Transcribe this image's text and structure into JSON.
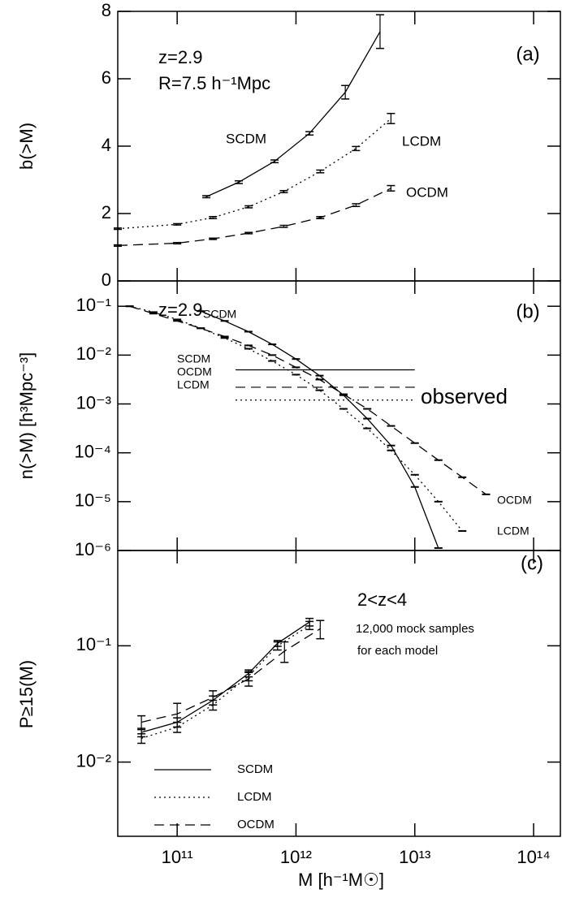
{
  "chart_data": [
    {
      "type": "line",
      "panel_label": "(a)",
      "y_label": "b(>M)",
      "annotations": [
        "z=2.9",
        "R=7.5 h⁻¹Mpc"
      ],
      "log_x": true,
      "log_y": false,
      "xlim": [
        31620000000,
        168000000000000
      ],
      "xticks": [
        {
          "value": 100000000000,
          "label": "10¹¹"
        },
        {
          "value": 1000000000000,
          "label": "10¹²"
        },
        {
          "value": 10000000000000,
          "label": "10¹³"
        },
        {
          "value": 100000000000000,
          "label": "10¹⁴"
        }
      ],
      "ylim": [
        0,
        8
      ],
      "yticks": [
        0,
        2,
        4,
        6,
        8
      ],
      "series": [
        {
          "name": "SCDM",
          "color": "#000000",
          "dash": "solid",
          "x": [
            176000000000,
            330000000000,
            660000000000,
            1300000000000,
            2600000000000,
            5100000000000
          ],
          "values": [
            2.5,
            2.93,
            3.55,
            4.38,
            5.6,
            7.4
          ],
          "errors": [
            0.03,
            0.04,
            0.04,
            0.05,
            0.2,
            0.5
          ]
        },
        {
          "name": "LCDM",
          "color": "#000000",
          "dash": "dotted",
          "x": [
            31620000000,
            100000000000,
            200000000000,
            400000000000,
            790000000000,
            1600000000000,
            3200000000000,
            6300000000000
          ],
          "values": [
            1.55,
            1.68,
            1.88,
            2.2,
            2.65,
            3.25,
            3.93,
            4.82
          ],
          "errors": [
            0.02,
            0.02,
            0.03,
            0.03,
            0.03,
            0.04,
            0.06,
            0.15
          ]
        },
        {
          "name": "OCDM",
          "color": "#000000",
          "dash": "dashed",
          "x": [
            31620000000,
            100000000000,
            200000000000,
            400000000000,
            790000000000,
            1600000000000,
            3200000000000,
            6300000000000
          ],
          "values": [
            1.05,
            1.12,
            1.25,
            1.42,
            1.62,
            1.88,
            2.25,
            2.75
          ],
          "errors": [
            0.02,
            0.02,
            0.02,
            0.02,
            0.03,
            0.03,
            0.04,
            0.08
          ]
        }
      ]
    },
    {
      "type": "line",
      "panel_label": "(b)",
      "y_label": "n(>M)  [h³Mpc⁻³]",
      "annotations": [
        "z=2.9"
      ],
      "log_x": true,
      "log_y": true,
      "xlim": [
        31620000000,
        168000000000000
      ],
      "xticks": [
        {
          "value": 100000000000,
          "label": "10¹¹"
        },
        {
          "value": 1000000000000,
          "label": "10¹²"
        },
        {
          "value": 10000000000000,
          "label": "10¹³"
        },
        {
          "value": 100000000000000,
          "label": "10¹⁴"
        }
      ],
      "ylim": [
        1e-06,
        0.33
      ],
      "yticks": [
        {
          "value": 1e-06,
          "label": "10⁻⁶"
        },
        {
          "value": 1e-05,
          "label": "10⁻⁵"
        },
        {
          "value": 0.0001,
          "label": "10⁻⁴"
        },
        {
          "value": 0.001,
          "label": "10⁻³"
        },
        {
          "value": 0.01,
          "label": "10⁻²"
        },
        {
          "value": 0.1,
          "label": "10⁻¹"
        }
      ],
      "observed": {
        "label": "observed",
        "xrange": [
          310000000000,
          10000000000000
        ],
        "lines": [
          {
            "name": "SCDM",
            "dash": "solid",
            "value": 0.005
          },
          {
            "name": "OCDM",
            "dash": "dashed",
            "value": 0.0022
          },
          {
            "name": "LCDM",
            "dash": "dotted",
            "value": 0.0012
          }
        ]
      },
      "series": [
        {
          "name": "SCDM",
          "color": "#000000",
          "dash": "solid",
          "x": [
            158000000000,
            251000000000,
            398000000000,
            631000000000,
            1000000000000,
            1580000000000,
            2510000000000,
            3980000000000,
            6310000000000,
            10000000000000,
            15800000000000
          ],
          "values": [
            0.0794,
            0.0501,
            0.0302,
            0.0166,
            0.00832,
            0.0038,
            0.00151,
            0.000501,
            0.000141,
            2e-05,
            1.12e-06
          ]
        },
        {
          "name": "LCDM",
          "color": "#000000",
          "dash": "dotted",
          "x": [
            39800000000,
            63100000000,
            100000000000,
            158000000000,
            251000000000,
            398000000000,
            631000000000,
            1000000000000,
            1580000000000,
            2510000000000,
            3980000000000,
            6310000000000,
            10000000000000,
            15800000000000,
            25100000000000
          ],
          "values": [
            0.1,
            0.0759,
            0.0537,
            0.0355,
            0.0224,
            0.0135,
            0.00759,
            0.00398,
            0.00191,
            0.000794,
            0.000316,
            0.000112,
            3.55e-05,
            1e-05,
            2.51e-06
          ]
        },
        {
          "name": "OCDM",
          "color": "#000000",
          "dash": "dashed",
          "x": [
            39800000000,
            63100000000,
            100000000000,
            158000000000,
            251000000000,
            398000000000,
            631000000000,
            1000000000000,
            1580000000000,
            2510000000000,
            3980000000000,
            6310000000000,
            10000000000000,
            15800000000000,
            25100000000000,
            39800000000000
          ],
          "values": [
            0.1,
            0.0708,
            0.0501,
            0.0355,
            0.024,
            0.0158,
            0.01,
            0.00562,
            0.00316,
            0.00158,
            0.000794,
            0.000355,
            0.000158,
            7.08e-05,
            3.16e-05,
            1.41e-05
          ]
        }
      ]
    },
    {
      "type": "line",
      "panel_label": "(c)",
      "y_label": "P≥15(M)",
      "x_label": "M  [h⁻¹M☉]",
      "annotations": [
        "2<z<4",
        "12,000 mock samples",
        "for each model"
      ],
      "log_x": true,
      "log_y": true,
      "legend": true,
      "xlim": [
        31620000000,
        168000000000000
      ],
      "xticks": [
        {
          "value": 100000000000,
          "label": "10¹¹"
        },
        {
          "value": 1000000000000,
          "label": "10¹²"
        },
        {
          "value": 10000000000000,
          "label": "10¹³"
        },
        {
          "value": 100000000000000,
          "label": "10¹⁴"
        }
      ],
      "ylim": [
        0.0023,
        0.66
      ],
      "yticks": [
        {
          "value": 0.01,
          "label": "10⁻²"
        },
        {
          "value": 0.1,
          "label": "10⁻¹"
        }
      ],
      "series": [
        {
          "name": "SCDM",
          "color": "#000000",
          "dash": "solid",
          "x": [
            50000000000,
            100000000000,
            200000000000,
            400000000000,
            700000000000,
            1300000000000
          ],
          "values": [
            0.018,
            0.022,
            0.034,
            0.058,
            0.105,
            0.16
          ],
          "errors": [
            0.0015,
            0.002,
            0.003,
            0.004,
            0.006,
            0.012
          ]
        },
        {
          "name": "LCDM",
          "color": "#000000",
          "dash": "dotted",
          "x": [
            50000000000,
            100000000000,
            200000000000,
            400000000000,
            700000000000,
            1300000000000
          ],
          "values": [
            0.016,
            0.02,
            0.031,
            0.055,
            0.1,
            0.15
          ],
          "errors": [
            0.0015,
            0.002,
            0.003,
            0.005,
            0.008,
            0.012
          ]
        },
        {
          "name": "OCDM",
          "color": "#000000",
          "dash": "dashed",
          "x": [
            50000000000,
            100000000000,
            200000000000,
            400000000000,
            800000000000,
            1600000000000
          ],
          "values": [
            0.022,
            0.026,
            0.036,
            0.052,
            0.09,
            0.14
          ],
          "errors": [
            0.003,
            0.006,
            0.005,
            0.007,
            0.018,
            0.025
          ]
        }
      ]
    }
  ]
}
